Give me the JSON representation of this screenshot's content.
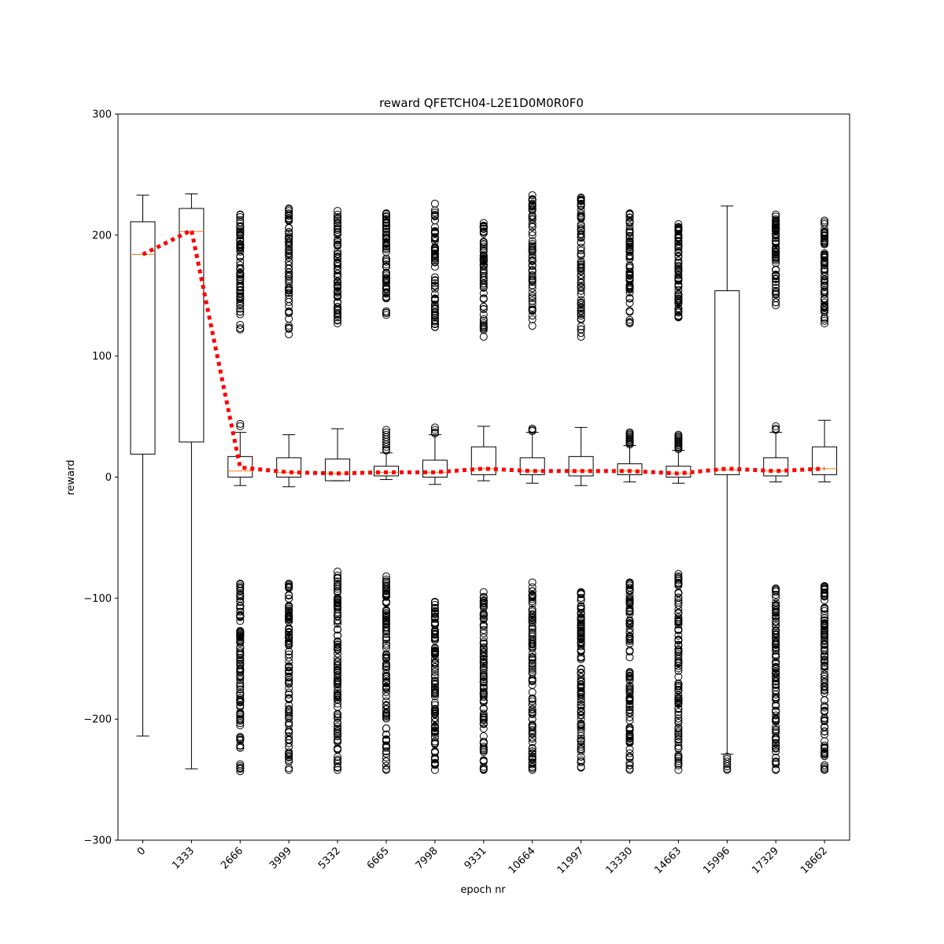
{
  "chart_data": {
    "type": "box",
    "title": "reward QFETCH04-L2E1D0M0R0F0",
    "xlabel": "epoch nr",
    "ylabel": "reward",
    "ylim": [
      -300,
      300
    ],
    "yticks": [
      -300,
      -200,
      -100,
      0,
      100,
      200,
      300
    ],
    "ytick_labels": [
      "−300",
      "−200",
      "−100",
      "0",
      "100",
      "200",
      "300"
    ],
    "grid": false,
    "categories": [
      "0",
      "1333",
      "2666",
      "3999",
      "5332",
      "6665",
      "7998",
      "9331",
      "10664",
      "11997",
      "13330",
      "14663",
      "15996",
      "17329",
      "18662"
    ],
    "boxes": [
      {
        "q1": 19,
        "median": 184,
        "q3": 211,
        "whislo": -214,
        "whishi": 233
      },
      {
        "q1": 29,
        "median": 203,
        "q3": 222,
        "whislo": -241,
        "whishi": 234
      },
      {
        "q1": 0,
        "median": 5,
        "q3": 17,
        "whislo": -7,
        "whishi": 37
      },
      {
        "q1": 0,
        "median": 4,
        "q3": 16,
        "whislo": -8,
        "whishi": 35
      },
      {
        "q1": -3,
        "median": 3,
        "q3": 15,
        "whislo": -3,
        "whishi": 40
      },
      {
        "q1": 1,
        "median": 4,
        "q3": 9,
        "whislo": -2,
        "whishi": 20
      },
      {
        "q1": 0,
        "median": 4,
        "q3": 14,
        "whislo": -6,
        "whishi": 35
      },
      {
        "q1": 2,
        "median": 7,
        "q3": 25,
        "whislo": -3,
        "whishi": 42
      },
      {
        "q1": 2,
        "median": 5,
        "q3": 16,
        "whislo": -5,
        "whishi": 37
      },
      {
        "q1": 1,
        "median": 5,
        "q3": 17,
        "whislo": -7,
        "whishi": 41
      },
      {
        "q1": 2,
        "median": 5,
        "q3": 11,
        "whislo": -4,
        "whishi": 26
      },
      {
        "q1": 0,
        "median": 3,
        "q3": 9,
        "whislo": -5,
        "whishi": 22
      },
      {
        "q1": 2,
        "median": 6,
        "q3": 154,
        "whislo": -229,
        "whishi": 224
      },
      {
        "q1": 1,
        "median": 5,
        "q3": 16,
        "whislo": -4,
        "whishi": 37
      },
      {
        "q1": 2,
        "median": 7,
        "q3": 25,
        "whislo": -4,
        "whishi": 47
      }
    ],
    "outliers": [
      {
        "high": [],
        "low": []
      },
      {
        "high": [],
        "low": []
      },
      {
        "high": [
          44,
          42
        ],
        "high_cluster": [
          122,
          217
        ],
        "low_cluster": [
          -243,
          -88
        ]
      },
      {
        "high_cluster": [
          118,
          222
        ],
        "low_cluster": [
          -242,
          -88
        ]
      },
      {
        "high_cluster": [
          127,
          220
        ],
        "low_cluster": [
          -242,
          -78
        ]
      },
      {
        "high": [
          39,
          37,
          35,
          33,
          31,
          29,
          27,
          25,
          23,
          22
        ],
        "high_cluster": [
          134,
          218
        ],
        "low_cluster": [
          -242,
          -82
        ]
      },
      {
        "high": [
          41,
          39,
          37,
          36
        ],
        "high_cluster": [
          124,
          226
        ],
        "low_cluster": [
          -242,
          -103
        ]
      },
      {
        "high_cluster": [
          116,
          210
        ],
        "low_cluster": [
          -242,
          -95
        ]
      },
      {
        "high": [
          40,
          39,
          38
        ],
        "high_cluster": [
          125,
          233
        ],
        "low_cluster": [
          -242,
          -87
        ]
      },
      {
        "high_cluster": [
          116,
          231
        ],
        "low_cluster": [
          -240,
          -95
        ]
      },
      {
        "high": [
          37,
          36,
          35,
          34,
          33,
          32,
          31,
          30,
          29,
          28,
          27
        ],
        "high_cluster": [
          127,
          218
        ],
        "low_cluster": [
          -242,
          -87
        ]
      },
      {
        "high": [
          35,
          34,
          33,
          32,
          31,
          30,
          29,
          28,
          27,
          26,
          25,
          24,
          23
        ],
        "high_cluster": [
          132,
          209
        ],
        "low_cluster": [
          -242,
          -80
        ]
      },
      {
        "high": [],
        "low": [
          -231,
          -233,
          -235,
          -237,
          -239,
          -241,
          -242
        ]
      },
      {
        "high": [
          42,
          40,
          39
        ],
        "high_cluster": [
          142,
          217
        ],
        "low_cluster": [
          -242,
          -92
        ]
      },
      {
        "high_cluster": [
          127,
          212
        ],
        "low_cluster": [
          -242,
          -90
        ]
      }
    ],
    "mean_line": {
      "name": "",
      "color": "#ff0000",
      "style": "dotted",
      "values": [
        184,
        204,
        8,
        4,
        3,
        4,
        4,
        7,
        5,
        5,
        5,
        3,
        7,
        5,
        7
      ]
    },
    "colors": {
      "box": "#000000",
      "median": "#ff7f0e",
      "mean": "#ff0000"
    }
  }
}
